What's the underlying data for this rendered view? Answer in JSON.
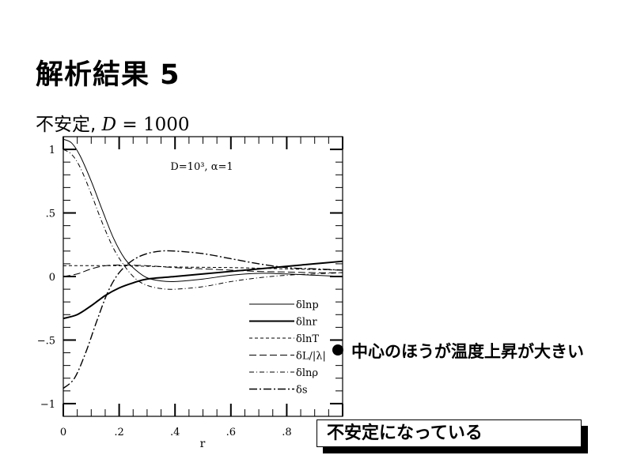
{
  "slide": {
    "title": "解析結果 5",
    "subtitle_prefix": "不安定,",
    "subtitle_math_var": "D",
    "subtitle_math_rest": "= 1000",
    "bullet": "中心のほうが温度上昇が大きい",
    "boxed_note": "不安定になっている"
  },
  "chart_data": {
    "type": "line",
    "annotation": "D=10³, α=1",
    "xlabel": "r",
    "ylabel": "",
    "xlim": [
      0,
      1
    ],
    "ylim": [
      -1.1,
      1.1
    ],
    "x_ticks": [
      0,
      0.2,
      0.4,
      0.6,
      0.8
    ],
    "x_tick_labels": [
      "0",
      ".2",
      ".4",
      ".6",
      ".8"
    ],
    "y_ticks": [
      1,
      0.5,
      0,
      -0.5,
      -1
    ],
    "y_tick_labels": [
      "1",
      ".5",
      "0",
      "−.5",
      "−1"
    ],
    "grid": false,
    "legend_position": "bottom-right",
    "series": [
      {
        "name": "δlnp",
        "style": "solid-thin",
        "points": [
          [
            0,
            1.08
          ],
          [
            0.03,
            1.05
          ],
          [
            0.06,
            0.95
          ],
          [
            0.1,
            0.75
          ],
          [
            0.14,
            0.52
          ],
          [
            0.18,
            0.3
          ],
          [
            0.22,
            0.14
          ],
          [
            0.26,
            0.05
          ],
          [
            0.3,
            -0.01
          ],
          [
            0.35,
            -0.035
          ],
          [
            0.4,
            -0.04
          ],
          [
            0.5,
            -0.02
          ],
          [
            0.6,
            0.01
          ],
          [
            0.7,
            0.025
          ],
          [
            0.8,
            0.02
          ],
          [
            0.9,
            0.01
          ],
          [
            1.0,
            0.0
          ]
        ]
      },
      {
        "name": "δlnr",
        "style": "solid-thick",
        "points": [
          [
            0,
            -0.33
          ],
          [
            0.05,
            -0.3
          ],
          [
            0.1,
            -0.23
          ],
          [
            0.15,
            -0.15
          ],
          [
            0.2,
            -0.09
          ],
          [
            0.25,
            -0.05
          ],
          [
            0.3,
            -0.02
          ],
          [
            0.4,
            0.0
          ],
          [
            0.5,
            0.02
          ],
          [
            0.6,
            0.04
          ],
          [
            0.7,
            0.06
          ],
          [
            0.8,
            0.08
          ],
          [
            0.9,
            0.1
          ],
          [
            1.0,
            0.12
          ]
        ]
      },
      {
        "name": "δlnT",
        "style": "dashed",
        "points": [
          [
            0,
            0.085
          ],
          [
            0.2,
            0.085
          ],
          [
            0.4,
            0.075
          ],
          [
            0.6,
            0.07
          ],
          [
            0.8,
            0.06
          ],
          [
            1.0,
            0.05
          ]
        ]
      },
      {
        "name": "δL/|λ|",
        "style": "long-dash",
        "points": [
          [
            0,
            0.0
          ],
          [
            0.05,
            0.02
          ],
          [
            0.1,
            0.06
          ],
          [
            0.15,
            0.085
          ],
          [
            0.2,
            0.09
          ],
          [
            0.3,
            0.085
          ],
          [
            0.4,
            0.07
          ],
          [
            0.5,
            0.06
          ],
          [
            0.6,
            0.05
          ],
          [
            0.7,
            0.04
          ],
          [
            0.8,
            0.035
          ],
          [
            0.9,
            0.03
          ],
          [
            1.0,
            0.03
          ]
        ]
      },
      {
        "name": "δlnρ",
        "style": "dot-dash",
        "points": [
          [
            0,
            1.0
          ],
          [
            0.03,
            0.96
          ],
          [
            0.06,
            0.86
          ],
          [
            0.1,
            0.65
          ],
          [
            0.14,
            0.42
          ],
          [
            0.18,
            0.22
          ],
          [
            0.22,
            0.08
          ],
          [
            0.26,
            -0.02
          ],
          [
            0.3,
            -0.07
          ],
          [
            0.35,
            -0.095
          ],
          [
            0.4,
            -0.1
          ],
          [
            0.5,
            -0.08
          ],
          [
            0.6,
            -0.04
          ],
          [
            0.7,
            -0.01
          ],
          [
            0.8,
            0.01
          ],
          [
            0.9,
            0.02
          ],
          [
            1.0,
            0.03
          ]
        ]
      },
      {
        "name": "δs",
        "style": "long-dash-dot",
        "points": [
          [
            0,
            -0.88
          ],
          [
            0.04,
            -0.8
          ],
          [
            0.08,
            -0.6
          ],
          [
            0.12,
            -0.35
          ],
          [
            0.16,
            -0.12
          ],
          [
            0.2,
            0.03
          ],
          [
            0.25,
            0.13
          ],
          [
            0.3,
            0.18
          ],
          [
            0.35,
            0.2
          ],
          [
            0.4,
            0.2
          ],
          [
            0.5,
            0.18
          ],
          [
            0.6,
            0.14
          ],
          [
            0.7,
            0.1
          ],
          [
            0.8,
            0.07
          ],
          [
            0.9,
            0.06
          ],
          [
            1.0,
            0.05
          ]
        ]
      }
    ]
  }
}
